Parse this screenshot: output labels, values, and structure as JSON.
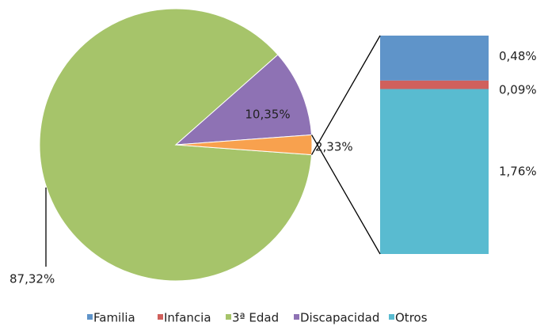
{
  "chart_data": {
    "type": "pie-of-bar",
    "pie": {
      "categories": [
        "3ª Edad",
        "Discapacidad",
        null
      ],
      "values": [
        87.32,
        10.35,
        2.33
      ],
      "value_labels": [
        "87,32%",
        "10,35%",
        "2,33%"
      ],
      "colors": [
        "#a6c46a",
        "#8e72b4",
        "#f8a14e"
      ]
    },
    "bar": {
      "categories": [
        "Familia",
        "Infancia",
        "Otros"
      ],
      "values": [
        0.48,
        0.09,
        1.76
      ],
      "value_labels": [
        "0,48%",
        "0,09%",
        "1,76%"
      ],
      "colors": [
        "#5f94c9",
        "#d0605c",
        "#59bbd0"
      ]
    }
  }
}
